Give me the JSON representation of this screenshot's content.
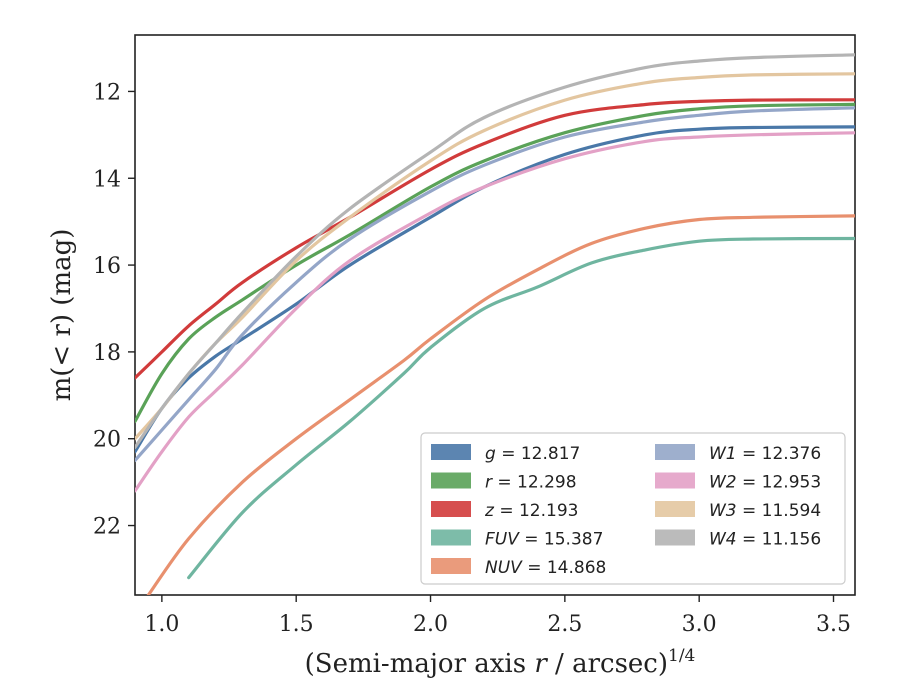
{
  "chart_data": {
    "type": "line",
    "xlabel": "(Semi-major axis r / arcsec)",
    "xlabel_var": "r",
    "xlabel_exponent": "1/4",
    "ylabel": "m(< r) (mag)",
    "xlim": [
      0.9,
      3.58
    ],
    "ylim": [
      23.6,
      10.7
    ],
    "y_inverted": true,
    "xticks": [
      1.0,
      1.5,
      2.0,
      2.5,
      3.0,
      3.5
    ],
    "xtick_labels": [
      "1.0",
      "1.5",
      "2.0",
      "2.5",
      "3.0",
      "3.5"
    ],
    "yticks": [
      12,
      14,
      16,
      18,
      20,
      22
    ],
    "ytick_labels": [
      "12",
      "14",
      "16",
      "18",
      "20",
      "22"
    ],
    "grid": false,
    "legend_placement": "lower-right",
    "series": [
      {
        "name": "g",
        "label": "g = 12.817",
        "color": "#4a78a8",
        "x": [
          0.9,
          1.0,
          1.1,
          1.2,
          1.3,
          1.5,
          1.7,
          2.0,
          2.2,
          2.5,
          2.8,
          3.0,
          3.2,
          3.58
        ],
        "y": [
          20.3,
          19.3,
          18.6,
          18.1,
          17.7,
          16.9,
          16.0,
          14.9,
          14.2,
          13.45,
          13.0,
          12.87,
          12.83,
          12.817
        ]
      },
      {
        "name": "r",
        "label": "r = 12.298",
        "color": "#5aa258",
        "x": [
          0.9,
          1.0,
          1.1,
          1.2,
          1.3,
          1.5,
          1.7,
          2.0,
          2.2,
          2.5,
          2.8,
          3.0,
          3.2,
          3.58
        ],
        "y": [
          19.6,
          18.5,
          17.7,
          17.2,
          16.8,
          16.0,
          15.3,
          14.2,
          13.6,
          12.95,
          12.55,
          12.4,
          12.33,
          12.298
        ]
      },
      {
        "name": "z",
        "label": "z = 12.193",
        "color": "#d13b3b",
        "x": [
          0.9,
          1.0,
          1.1,
          1.2,
          1.3,
          1.5,
          1.7,
          2.0,
          2.2,
          2.5,
          2.8,
          3.0,
          3.2,
          3.58
        ],
        "y": [
          18.6,
          18.0,
          17.4,
          16.9,
          16.4,
          15.6,
          14.9,
          13.8,
          13.2,
          12.55,
          12.3,
          12.23,
          12.2,
          12.193
        ]
      },
      {
        "name": "FUV",
        "label": "FUV = 15.387",
        "color": "#6fb5a0",
        "x": [
          1.1,
          1.3,
          1.5,
          1.7,
          1.9,
          2.0,
          2.2,
          2.4,
          2.6,
          2.8,
          3.0,
          3.2,
          3.58
        ],
        "y": [
          23.2,
          21.7,
          20.6,
          19.6,
          18.5,
          17.9,
          17.0,
          16.5,
          15.95,
          15.65,
          15.45,
          15.4,
          15.387
        ]
      },
      {
        "name": "NUV",
        "label": "NUV = 14.868",
        "color": "#e8906e",
        "x": [
          0.95,
          1.1,
          1.3,
          1.5,
          1.7,
          1.9,
          2.0,
          2.2,
          2.4,
          2.6,
          2.8,
          3.0,
          3.2,
          3.58
        ],
        "y": [
          23.6,
          22.3,
          21.0,
          20.0,
          19.1,
          18.2,
          17.7,
          16.8,
          16.1,
          15.5,
          15.15,
          14.95,
          14.9,
          14.868
        ]
      },
      {
        "name": "W1",
        "label": "W1 = 12.376",
        "color": "#94a6c8",
        "x": [
          0.9,
          1.0,
          1.1,
          1.2,
          1.3,
          1.5,
          1.7,
          2.0,
          2.2,
          2.5,
          2.8,
          3.0,
          3.2,
          3.58
        ],
        "y": [
          20.5,
          19.8,
          19.1,
          18.4,
          17.6,
          16.4,
          15.4,
          14.3,
          13.7,
          13.05,
          12.7,
          12.55,
          12.45,
          12.376
        ]
      },
      {
        "name": "W2",
        "label": "W2 = 12.953",
        "color": "#e3a1c6",
        "x": [
          0.9,
          1.0,
          1.1,
          1.2,
          1.3,
          1.5,
          1.7,
          2.0,
          2.2,
          2.5,
          2.8,
          3.0,
          3.2,
          3.58
        ],
        "y": [
          21.2,
          20.3,
          19.5,
          18.9,
          18.3,
          17.0,
          15.9,
          14.8,
          14.2,
          13.55,
          13.15,
          13.05,
          13.0,
          12.953
        ]
      },
      {
        "name": "W3",
        "label": "W3 = 11.594",
        "color": "#e3c6a0",
        "x": [
          0.9,
          1.0,
          1.1,
          1.2,
          1.3,
          1.5,
          1.7,
          2.0,
          2.2,
          2.5,
          2.8,
          3.0,
          3.2,
          3.58
        ],
        "y": [
          20.0,
          19.3,
          18.5,
          17.8,
          17.2,
          15.9,
          14.9,
          13.6,
          12.9,
          12.2,
          11.8,
          11.68,
          11.62,
          11.594
        ]
      },
      {
        "name": "W4",
        "label": "W4 = 11.156",
        "color": "#b4b4b4",
        "x": [
          0.9,
          1.0,
          1.1,
          1.2,
          1.3,
          1.5,
          1.7,
          2.0,
          2.2,
          2.5,
          2.8,
          3.0,
          3.2,
          3.58
        ],
        "y": [
          20.2,
          19.3,
          18.5,
          17.8,
          17.1,
          15.8,
          14.7,
          13.4,
          12.6,
          11.9,
          11.45,
          11.3,
          11.22,
          11.156
        ]
      }
    ],
    "legend_columns": [
      [
        "g",
        "r",
        "z",
        "FUV",
        "NUV"
      ],
      [
        "W1",
        "W2",
        "W3",
        "W4"
      ]
    ],
    "legend_texts": {
      "g": {
        "var": "g",
        "value": "= 12.817"
      },
      "r": {
        "var": "r",
        "value": "= 12.298"
      },
      "z": {
        "var": "z",
        "value": "= 12.193"
      },
      "FUV": {
        "var": "FUV",
        "value": "= 15.387"
      },
      "NUV": {
        "var": "NUV",
        "value": "= 14.868"
      },
      "W1": {
        "var": "W1",
        "value": "= 12.376"
      },
      "W2": {
        "var": "W2",
        "value": "= 12.953"
      },
      "W3": {
        "var": "W3",
        "value": "= 11.594"
      },
      "W4": {
        "var": "W4",
        "value": "= 11.156"
      }
    }
  }
}
